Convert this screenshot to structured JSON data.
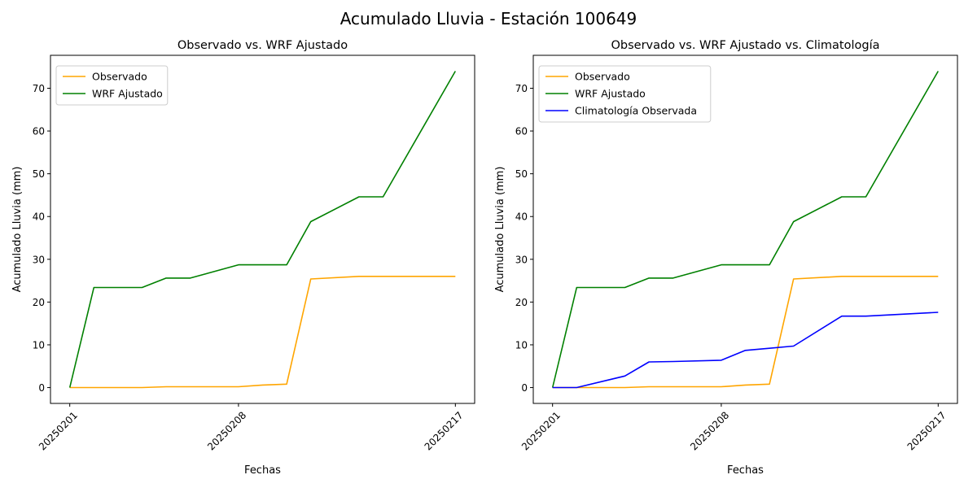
{
  "figure": {
    "suptitle": "Acumulado Lluvia - Estación 100649"
  },
  "chart_data": [
    {
      "type": "line",
      "title": "Observado vs. WRF Ajustado",
      "xlabel": "Fechas",
      "ylabel": "Acumulado Lluvia (mm)",
      "x_ticks": [
        "20250201",
        "20250208",
        "20250217"
      ],
      "y_ticks": [
        0,
        10,
        20,
        30,
        40,
        50,
        60,
        70
      ],
      "ylim": [
        -3.7,
        77.7
      ],
      "grid": false,
      "legend": "top-left",
      "x": [
        "20250201",
        "20250202",
        "20250204",
        "20250205",
        "20250206",
        "20250208",
        "20250209",
        "20250210",
        "20250211",
        "20250213",
        "20250214",
        "20250217"
      ],
      "series": [
        {
          "name": "Observado",
          "color": "#FFA500",
          "values": [
            0,
            0,
            0,
            0.2,
            0.2,
            0.2,
            0.6,
            0.8,
            25.4,
            26.0,
            26.0,
            26.0
          ]
        },
        {
          "name": "WRF Ajustado",
          "color": "#008000",
          "values": [
            0,
            23.4,
            23.4,
            25.6,
            25.6,
            28.7,
            28.7,
            28.7,
            38.8,
            44.6,
            44.6,
            74.0
          ]
        }
      ]
    },
    {
      "type": "line",
      "title": "Observado vs. WRF Ajustado vs. Climatología",
      "xlabel": "Fechas",
      "ylabel": "Acumulado Lluvia (mm)",
      "x_ticks": [
        "20250201",
        "20250208",
        "20250217"
      ],
      "y_ticks": [
        0,
        10,
        20,
        30,
        40,
        50,
        60,
        70
      ],
      "ylim": [
        -3.7,
        77.7
      ],
      "grid": false,
      "legend": "top-left",
      "x": [
        "20250201",
        "20250202",
        "20250204",
        "20250205",
        "20250206",
        "20250208",
        "20250209",
        "20250210",
        "20250211",
        "20250213",
        "20250214",
        "20250217"
      ],
      "series": [
        {
          "name": "Observado",
          "color": "#FFA500",
          "values": [
            0,
            0,
            0,
            0.2,
            0.2,
            0.2,
            0.6,
            0.8,
            25.4,
            26.0,
            26.0,
            26.0
          ]
        },
        {
          "name": "WRF Ajustado",
          "color": "#008000",
          "values": [
            0,
            23.4,
            23.4,
            25.6,
            25.6,
            28.7,
            28.7,
            28.7,
            38.8,
            44.6,
            44.6,
            74.0
          ]
        },
        {
          "name": "Climatología Observada",
          "color": "#0000FF",
          "values": [
            0,
            0,
            2.7,
            6.0,
            6.1,
            6.4,
            8.7,
            9.2,
            9.7,
            16.7,
            16.7,
            17.6
          ]
        }
      ]
    }
  ]
}
